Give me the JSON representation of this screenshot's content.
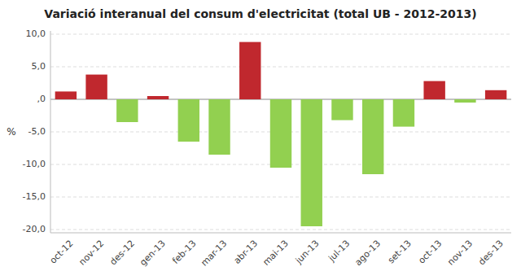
{
  "chart_data": {
    "type": "bar",
    "title": "Variació interanual del consum d'electricitat (total UB - 2012-2013)",
    "ylabel": "%",
    "categories": [
      "oct-12",
      "nov-12",
      "des-12",
      "gen-13",
      "feb-13",
      "mar-13",
      "abr-13",
      "mai-13",
      "jun-13",
      "jul-13",
      "ago-13",
      "set-13",
      "oct-13",
      "nov-13",
      "des-13"
    ],
    "values": [
      1.2,
      3.8,
      -3.5,
      0.5,
      -6.5,
      -8.5,
      8.8,
      -10.5,
      -19.5,
      -3.2,
      -11.5,
      -4.2,
      2.8,
      -0.5,
      1.4
    ],
    "colors": [
      "#C0282E",
      "#C0282E",
      "#92D050",
      "#C0282E",
      "#92D050",
      "#92D050",
      "#C0282E",
      "#92D050",
      "#92D050",
      "#92D050",
      "#92D050",
      "#92D050",
      "#C0282E",
      "#92D050",
      "#C0282E"
    ],
    "ylim": [
      -20.5,
      10.5
    ],
    "yticks": [
      {
        "value": -20.0,
        "label": "-20,0"
      },
      {
        "value": -15.0,
        "label": "-15,0"
      },
      {
        "value": -10.0,
        "label": "-10,0"
      },
      {
        "value": -5.0,
        "label": "-5,0"
      },
      {
        "value": 0.0,
        "label": ",0"
      },
      {
        "value": 5.0,
        "label": "5,0"
      },
      {
        "value": 10.0,
        "label": "10,0"
      }
    ],
    "grid": true
  }
}
